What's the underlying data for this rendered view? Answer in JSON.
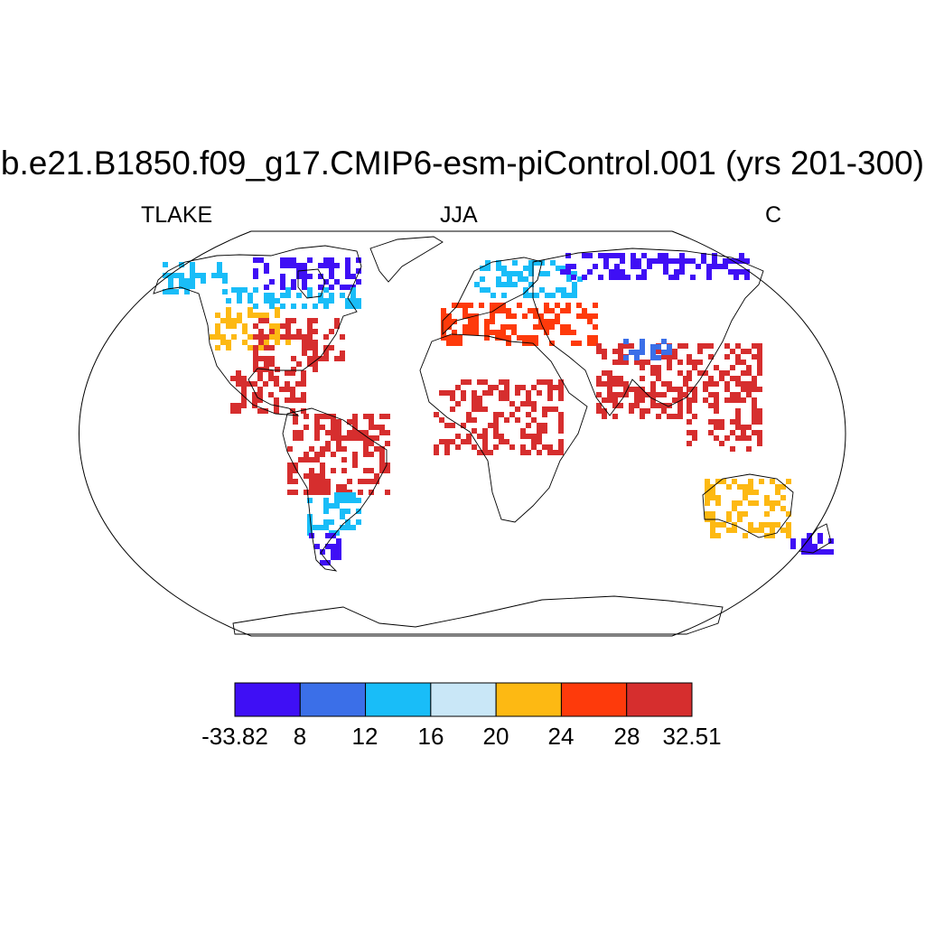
{
  "title": "b.e21.B1850.f09_g17.CMIP6-esm-piControl.001 (yrs 201-300)",
  "subtitles": {
    "left": "TLAKE",
    "center": "JJA",
    "right": "C"
  },
  "colorbar": {
    "colors": [
      "#3f0ff5",
      "#3b6fe8",
      "#19bdf8",
      "#c9e7f7",
      "#fdb913",
      "#fe3a0b",
      "#d62e2e"
    ],
    "tick_labels": [
      "-33.82",
      "8",
      "12",
      "16",
      "20",
      "24",
      "28",
      "32.51"
    ]
  },
  "map": {
    "projection": "Robinson",
    "regions": [
      {
        "region": "Canada (north)",
        "color_index": 0
      },
      {
        "region": "Canada (south)",
        "color_index": 2
      },
      {
        "region": "Alaska",
        "color_index": 2
      },
      {
        "region": "USA west",
        "color_index": 4
      },
      {
        "region": "USA east",
        "color_index": 6
      },
      {
        "region": "Central America",
        "color_index": 6
      },
      {
        "region": "Amazon",
        "color_index": 6
      },
      {
        "region": "Southern South America",
        "color_index": 2
      },
      {
        "region": "Patagonia",
        "color_index": 0
      },
      {
        "region": "Northern Europe",
        "color_index": 2
      },
      {
        "region": "Siberia",
        "color_index": 0
      },
      {
        "region": "Southern Europe / Middle East",
        "color_index": 5
      },
      {
        "region": "Sahel",
        "color_index": 6
      },
      {
        "region": "South Asia",
        "color_index": 6
      },
      {
        "region": "Tibet",
        "color_index": 1
      },
      {
        "region": "Southeast Asia",
        "color_index": 6
      },
      {
        "region": "Australia",
        "color_index": 4
      },
      {
        "region": "New Zealand",
        "color_index": 0
      }
    ]
  }
}
